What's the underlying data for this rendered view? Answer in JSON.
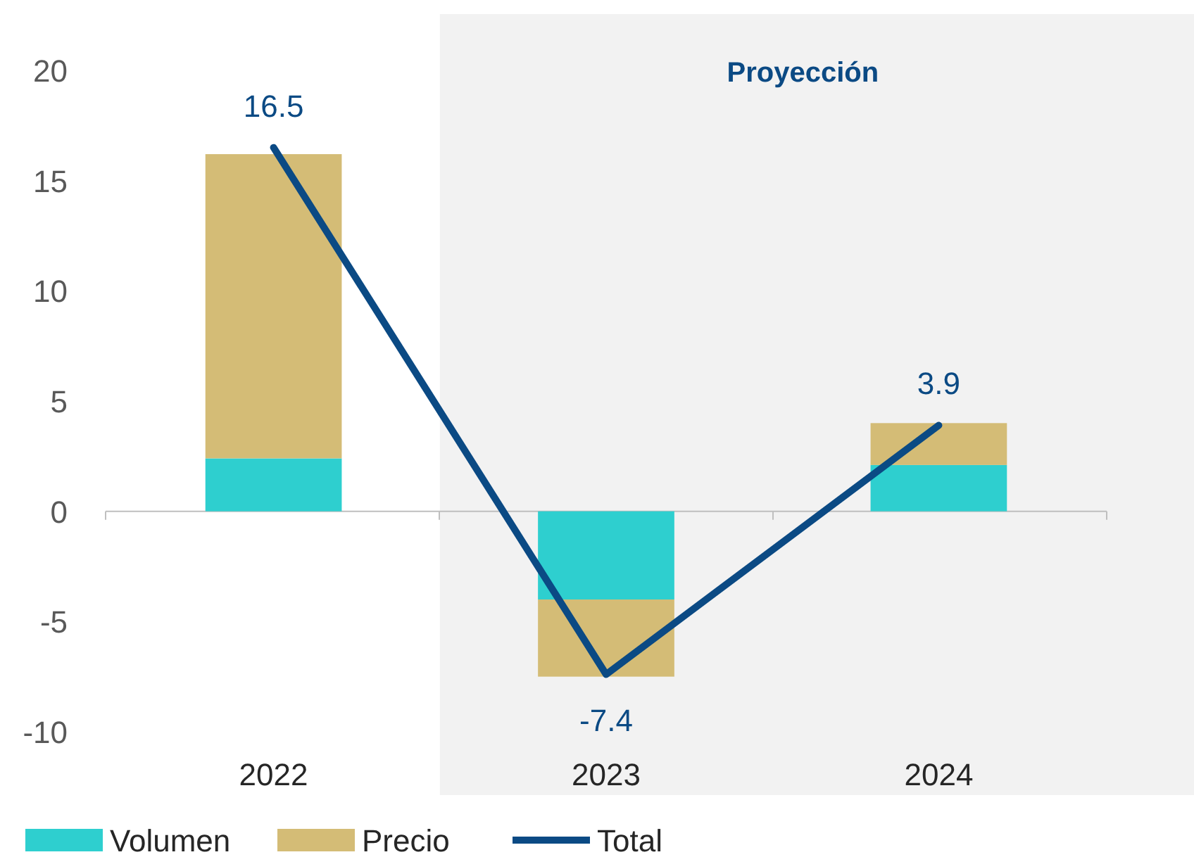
{
  "chart_data": {
    "type": "bar",
    "stacked": true,
    "categories": [
      "2022",
      "2023",
      "2024"
    ],
    "series": [
      {
        "name": "Volumen",
        "color": "#2ecfcf",
        "values": [
          2.4,
          -4.0,
          2.1
        ]
      },
      {
        "name": "Precio",
        "color": "#d4bc76",
        "values": [
          13.8,
          -3.5,
          1.9
        ]
      },
      {
        "name": "Total",
        "type": "line",
        "color": "#0b4a84",
        "values": [
          16.5,
          -7.4,
          3.9
        ],
        "value_labels": [
          "16.5",
          "-7.4",
          "3.9"
        ]
      }
    ],
    "ylim": [
      -10,
      20
    ],
    "yticks": [
      -10,
      -5,
      0,
      5,
      10,
      15,
      20
    ],
    "legend": "bottom",
    "bands": [
      {
        "axis": "x",
        "from": "2023",
        "to": "2024",
        "label": "Proyección",
        "color": "#f2f2f2"
      }
    ]
  }
}
